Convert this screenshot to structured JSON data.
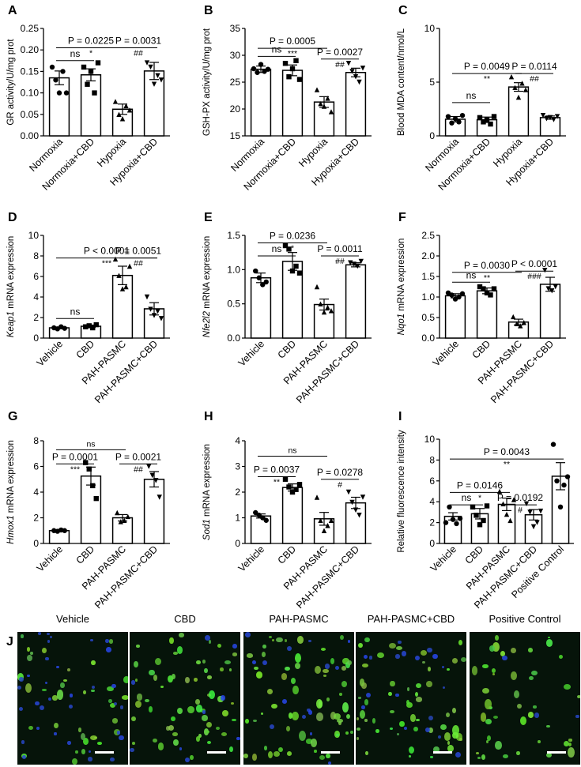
{
  "figure": {
    "panel_j_label": "J",
    "micrographs": [
      {
        "title": "Vehicle",
        "green": 0.45,
        "blue": 0.55
      },
      {
        "title": "CBD",
        "green": 0.75,
        "blue": 0.15
      },
      {
        "title": "PAH-PASMC",
        "green": 0.8,
        "blue": 0.25
      },
      {
        "title": "PAH-PASMC+CBD",
        "green": 0.7,
        "blue": 0.3
      },
      {
        "title": "Positive Control",
        "green": 0.55,
        "blue": 0.05
      }
    ]
  },
  "chart_data": [
    {
      "panel": "A",
      "type": "bar",
      "ylabel": "GR activity/U/mg prot",
      "ylabel_italic": "",
      "ylim": [
        0,
        0.25
      ],
      "yticks": [
        "0.00",
        "0.05",
        "0.10",
        "0.15",
        "0.20",
        "0.25"
      ],
      "categories": [
        "Normoxia",
        "Normoxia+CBD",
        "Hypoxia",
        "Hypoxia+CBD"
      ],
      "values": [
        0.135,
        0.142,
        0.062,
        0.151
      ],
      "errors": [
        0.016,
        0.014,
        0.012,
        0.02
      ],
      "points": [
        [
          0.16,
          0.13,
          0.1,
          0.15,
          0.1
        ],
        [
          0.16,
          0.12,
          0.15,
          0.1,
          0.17
        ],
        [
          0.08,
          0.05,
          0.04,
          0.07,
          0.06
        ],
        [
          0.17,
          0.16,
          0.12,
          0.14,
          0.13
        ]
      ],
      "marker_shape": [
        "circle",
        "square",
        "triangle",
        "invtriangle"
      ],
      "annotations": [
        {
          "from": 0,
          "to": 2,
          "level": 0.205,
          "text": "P = 0.0225",
          "sub": "*"
        },
        {
          "from": 0,
          "to": 1,
          "level": 0.175,
          "text": "ns",
          "sub": ""
        },
        {
          "from": 2,
          "to": 3,
          "level": 0.205,
          "text": "P = 0.0031",
          "sub": "##"
        }
      ]
    },
    {
      "panel": "B",
      "type": "bar",
      "ylabel": "GSH-PX activity/U/mg prot",
      "ylabel_italic": "",
      "ylim": [
        15,
        35
      ],
      "yticks": [
        "15",
        "20",
        "25",
        "30",
        "35"
      ],
      "categories": [
        "Normoxia",
        "Normoxia+CBD",
        "Hypoxia",
        "Hypoxia+CBD"
      ],
      "values": [
        27.4,
        27.2,
        21.3,
        26.8
      ],
      "errors": [
        0.6,
        1.0,
        1.0,
        0.8
      ],
      "points": [
        [
          27.5,
          26.8,
          28.3,
          27.0,
          27.4
        ],
        [
          28.5,
          26.0,
          27.5,
          29.0,
          25.5
        ],
        [
          23.6,
          21.0,
          20.5,
          22.0,
          19.5
        ],
        [
          28.5,
          27.0,
          26.0,
          25.0,
          27.6
        ]
      ],
      "marker_shape": [
        "circle",
        "square",
        "triangle",
        "invtriangle"
      ],
      "annotations": [
        {
          "from": 0,
          "to": 2,
          "level": 31.3,
          "text": "P = 0.0005",
          "sub": "***"
        },
        {
          "from": 0,
          "to": 1,
          "level": 29.8,
          "text": "ns",
          "sub": ""
        },
        {
          "from": 2,
          "to": 3,
          "level": 29.3,
          "text": "P = 0.0027",
          "sub": "##"
        }
      ]
    },
    {
      "panel": "C",
      "type": "bar",
      "ylabel": "Blood MDA content/nmol/L",
      "ylabel_italic": "",
      "ylim": [
        0,
        10
      ],
      "yticks": [
        "0",
        "5",
        "10"
      ],
      "categories": [
        "Normoxia",
        "Normoxia+CBD",
        "Hypoxia",
        "Hypoxia+CBD"
      ],
      "values": [
        1.55,
        1.5,
        4.55,
        1.7
      ],
      "errors": [
        0.25,
        0.25,
        0.4,
        0.15
      ],
      "points": [
        [
          1.8,
          1.2,
          1.6,
          1.3,
          1.9
        ],
        [
          1.7,
          1.3,
          1.5,
          1.1,
          1.8
        ],
        [
          5.5,
          4.5,
          3.6,
          4.9,
          4.3
        ],
        [
          1.9,
          1.6,
          1.7,
          1.5,
          1.8
        ]
      ],
      "marker_shape": [
        "circle",
        "square",
        "triangle",
        "invtriangle"
      ],
      "annotations": [
        {
          "from": 0,
          "to": 2,
          "level": 5.8,
          "text": "P = 0.0049",
          "sub": "**"
        },
        {
          "from": 0,
          "to": 1,
          "level": 3.1,
          "text": "ns",
          "sub": ""
        },
        {
          "from": 2,
          "to": 3,
          "level": 5.8,
          "text": "P = 0.0114",
          "sub": "##"
        }
      ]
    },
    {
      "panel": "D",
      "type": "bar",
      "ylabel": " mRNA expression",
      "ylabel_italic": "Keap1",
      "ylim": [
        0,
        10
      ],
      "yticks": [
        "0",
        "2",
        "4",
        "6",
        "8",
        "10"
      ],
      "categories": [
        "Vehicle",
        "CBD",
        "PAH-PASMC",
        "PAH-PASMC+CBD"
      ],
      "values": [
        1.0,
        1.15,
        6.1,
        2.85
      ],
      "errors": [
        0.08,
        0.12,
        0.9,
        0.6
      ],
      "points": [
        [
          1.0,
          0.9,
          1.1,
          0.95
        ],
        [
          1.1,
          1.2,
          1.0,
          1.3
        ],
        [
          7.7,
          6.1,
          4.8,
          5.0,
          7.0
        ],
        [
          4.0,
          2.8,
          2.2,
          2.6,
          1.9
        ]
      ],
      "marker_shape": [
        "circle",
        "square",
        "triangle",
        "invtriangle"
      ],
      "annotations": [
        {
          "from": 0,
          "to": 3,
          "level": 7.8,
          "text": "P < 0.0001",
          "sub": "***"
        },
        {
          "from": 0,
          "to": 1,
          "level": 1.9,
          "text": "ns",
          "sub": ""
        },
        {
          "from": 2,
          "to": 3,
          "level": 7.8,
          "text": "P = 0.0051",
          "sub": "##"
        }
      ]
    },
    {
      "panel": "E",
      "type": "bar",
      "ylabel": " mRNA expression",
      "ylabel_italic": "Nfe2l2",
      "ylim": [
        0,
        1.5
      ],
      "yticks": [
        "0.0",
        "0.5",
        "1.0",
        "1.5"
      ],
      "categories": [
        "Vehicle",
        "CBD",
        "PAH-PASMC",
        "PAH-PASMC+CBD"
      ],
      "values": [
        0.88,
        1.12,
        0.49,
        1.07
      ],
      "errors": [
        0.07,
        0.13,
        0.08,
        0.03
      ],
      "points": [
        [
          0.98,
          0.88,
          0.78,
          0.82
        ],
        [
          1.35,
          1.3,
          0.98,
          1.05,
          0.95
        ],
        [
          0.75,
          0.5,
          0.38,
          0.45,
          0.4
        ],
        [
          1.1,
          1.08,
          1.05,
          1.12
        ]
      ],
      "marker_shape": [
        "circle",
        "square",
        "triangle",
        "invtriangle"
      ],
      "annotations": [
        {
          "from": 0,
          "to": 2,
          "level": 1.39,
          "text": "P = 0.0236",
          "sub": "*"
        },
        {
          "from": 0,
          "to": 1,
          "level": 1.2,
          "text": "ns",
          "sub": ""
        },
        {
          "from": 2,
          "to": 3,
          "level": 1.2,
          "text": "P = 0.0011",
          "sub": "##"
        }
      ]
    },
    {
      "panel": "F",
      "type": "bar",
      "ylabel": " mRNA expression",
      "ylabel_italic": "Nqo1",
      "ylim": [
        0,
        2.5
      ],
      "yticks": [
        "0.0",
        "0.5",
        "1.0",
        "1.5",
        "2.0",
        "2.5"
      ],
      "categories": [
        "Vehicle",
        "CBD",
        "PAH-PASMC",
        "PAH-PASMC+CBD"
      ],
      "values": [
        1.03,
        1.15,
        0.39,
        1.31
      ],
      "errors": [
        0.05,
        0.07,
        0.07,
        0.17
      ],
      "points": [
        [
          1.1,
          1.05,
          0.95,
          1.0,
          1.08
        ],
        [
          1.25,
          1.2,
          1.1,
          1.05,
          1.2
        ],
        [
          0.52,
          0.35,
          0.3,
          0.38
        ],
        [
          1.65,
          1.2,
          1.15,
          1.25
        ]
      ],
      "marker_shape": [
        "circle",
        "square",
        "triangle",
        "invtriangle"
      ],
      "annotations": [
        {
          "from": 0,
          "to": 2,
          "level": 1.6,
          "text": "P = 0.0030",
          "sub": "**"
        },
        {
          "from": 0,
          "to": 1,
          "level": 1.36,
          "text": "ns",
          "sub": ""
        },
        {
          "from": 2,
          "to": 3,
          "level": 1.63,
          "text": "P < 0.0001",
          "sub": "###"
        }
      ]
    },
    {
      "panel": "G",
      "type": "bar",
      "ylabel": " mRNA expression",
      "ylabel_italic": "Hmox1",
      "ylim": [
        0,
        8
      ],
      "yticks": [
        "0",
        "2",
        "4",
        "6",
        "8"
      ],
      "categories": [
        "Vehicle",
        "CBD",
        "PAH-PASMC",
        "PAH-PASMC+CBD"
      ],
      "values": [
        1.0,
        5.25,
        2.0,
        5.0
      ],
      "errors": [
        0.04,
        0.7,
        0.25,
        0.6
      ],
      "points": [
        [
          1.0,
          0.95,
          1.05,
          1.0
        ],
        [
          6.3,
          5.8,
          4.5,
          3.5
        ],
        [
          2.4,
          1.7,
          1.8,
          2.1
        ],
        [
          6.0,
          5.3,
          4.9,
          3.6
        ]
      ],
      "marker_shape": [
        "circle",
        "square",
        "triangle",
        "invtriangle"
      ],
      "annotations": [
        {
          "from": 0,
          "to": 2,
          "level": 7.3,
          "text": "",
          "sub": "ns"
        },
        {
          "from": 0,
          "to": 1,
          "level": 6.2,
          "text": "P = 0.0001",
          "sub": "***"
        },
        {
          "from": 2,
          "to": 3,
          "level": 6.2,
          "text": "P = 0.0021",
          "sub": "##"
        }
      ]
    },
    {
      "panel": "H",
      "type": "bar",
      "ylabel": " mRNA expression",
      "ylabel_italic": "Sod1",
      "ylim": [
        0,
        4
      ],
      "yticks": [
        "0",
        "1",
        "2",
        "3",
        "4"
      ],
      "categories": [
        "Vehicle",
        "CBD",
        "PAH-PASMC",
        "PAH-PASMC+CBD"
      ],
      "values": [
        1.07,
        2.18,
        0.96,
        1.58
      ],
      "errors": [
        0.08,
        0.14,
        0.25,
        0.22
      ],
      "points": [
        [
          1.2,
          1.1,
          1.0,
          0.9
        ],
        [
          2.5,
          2.2,
          2.0,
          2.1,
          2.3
        ],
        [
          1.8,
          0.9,
          0.5,
          0.7,
          0.9
        ],
        [
          2.0,
          1.6,
          1.3,
          1.1,
          1.8
        ]
      ],
      "marker_shape": [
        "circle",
        "square",
        "triangle",
        "invtriangle"
      ],
      "annotations": [
        {
          "from": 0,
          "to": 2,
          "level": 3.4,
          "text": "",
          "sub": "ns"
        },
        {
          "from": 0,
          "to": 1,
          "level": 2.6,
          "text": "P = 0.0037",
          "sub": "**"
        },
        {
          "from": 2,
          "to": 3,
          "level": 2.5,
          "text": "P = 0.0278",
          "sub": "#"
        }
      ]
    },
    {
      "panel": "I",
      "type": "bar",
      "ylabel": "Relative fluorescence intensity",
      "ylabel_italic": "",
      "ylim": [
        0,
        10
      ],
      "yticks": [
        "0",
        "2",
        "4",
        "6",
        "8",
        "10"
      ],
      "categories": [
        "Vehicle",
        "CBD",
        "PAH-PASMC",
        "PAH-PASMC+CBD",
        "Positive Control"
      ],
      "values": [
        2.6,
        2.85,
        3.75,
        2.75,
        6.45
      ],
      "errors": [
        0.35,
        0.5,
        0.6,
        0.5,
        1.3
      ],
      "points": [
        [
          2.0,
          3.5,
          2.3,
          1.9,
          2.4
        ],
        [
          3.5,
          2.7,
          1.8,
          2.2,
          3.6
        ],
        [
          5.0,
          3.8,
          2.8,
          2.2,
          4.2
        ],
        [
          3.8,
          3.0,
          1.6,
          2.0,
          3.1
        ],
        [
          9.5,
          6.0,
          3.5,
          5.6,
          6.4
        ]
      ],
      "marker_shape": [
        "circle",
        "square",
        "triangle",
        "invtriangle",
        "circle"
      ],
      "annotations": [
        {
          "from": 0,
          "to": 4,
          "level": 8.1,
          "text": "P = 0.0043",
          "sub": "**"
        },
        {
          "from": 0,
          "to": 2,
          "level": 4.9,
          "text": "P = 0.0146",
          "sub": "*"
        },
        {
          "from": 0,
          "to": 1,
          "level": 3.7,
          "text": "ns",
          "sub": ""
        },
        {
          "from": 2,
          "to": 3,
          "level": 3.7,
          "text": "P = 0.0192",
          "sub": "#"
        }
      ]
    }
  ]
}
